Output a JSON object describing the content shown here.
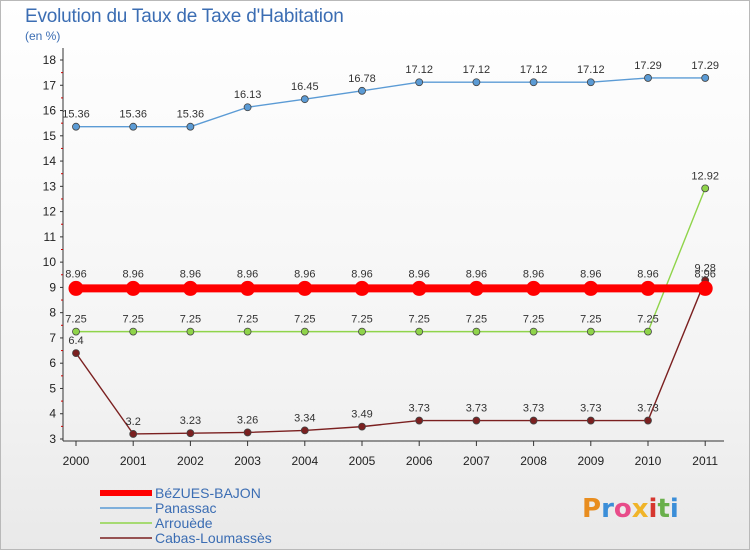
{
  "title": "Evolution du Taux de Taxe d'Habitation",
  "subtitle": "(en %)",
  "logo_text": "Proxiti",
  "chart_data": {
    "type": "line",
    "x": [
      "2000",
      "2001",
      "2002",
      "2003",
      "2004",
      "2005",
      "2006",
      "2007",
      "2008",
      "2009",
      "2010",
      "2011"
    ],
    "ylim": [
      3,
      18
    ],
    "yticks": [
      3,
      4,
      5,
      6,
      7,
      8,
      9,
      10,
      11,
      12,
      13,
      14,
      15,
      16,
      17,
      18
    ],
    "grid": false,
    "legend_position": "bottom-left",
    "series": [
      {
        "name": "BéZUES-BAJON",
        "color": "#ff0000",
        "values": [
          8.96,
          8.96,
          8.96,
          8.96,
          8.96,
          8.96,
          8.96,
          8.96,
          8.96,
          8.96,
          8.96,
          8.96
        ],
        "labels": [
          "8.96",
          "8.96",
          "8.96",
          "8.96",
          "8.96",
          "8.96",
          "8.96",
          "8.96",
          "8.96",
          "8.96",
          "8.96",
          "8.96"
        ]
      },
      {
        "name": "Panassac",
        "color": "#5b9bd5",
        "values": [
          15.36,
          15.36,
          15.36,
          16.13,
          16.45,
          16.78,
          17.12,
          17.12,
          17.12,
          17.12,
          17.29,
          17.29
        ],
        "labels": [
          "15.36",
          "15.36",
          "15.36",
          "16.13",
          "16.45",
          "16.78",
          "17.12",
          "17.12",
          "17.12",
          "17.12",
          "17.29",
          "17.29"
        ]
      },
      {
        "name": "Arrouède",
        "color": "#8fd44a",
        "values": [
          7.25,
          7.25,
          7.25,
          7.25,
          7.25,
          7.25,
          7.25,
          7.25,
          7.25,
          7.25,
          7.25,
          12.92
        ],
        "labels": [
          "7.25",
          "7.25",
          "7.25",
          "7.25",
          "7.25",
          "7.25",
          "7.25",
          "7.25",
          "7.25",
          "7.25",
          "7.25",
          "12.92"
        ]
      },
      {
        "name": "Cabas-Loumassès",
        "color": "#7b2020",
        "values": [
          6.4,
          3.2,
          3.23,
          3.26,
          3.34,
          3.49,
          3.73,
          3.73,
          3.73,
          3.73,
          3.73,
          9.28
        ],
        "labels": [
          "6.4",
          "3.2",
          "3.23",
          "3.26",
          "3.34",
          "3.49",
          "3.73",
          "3.73",
          "3.73",
          "3.73",
          "3.73",
          "9.28"
        ]
      }
    ]
  }
}
